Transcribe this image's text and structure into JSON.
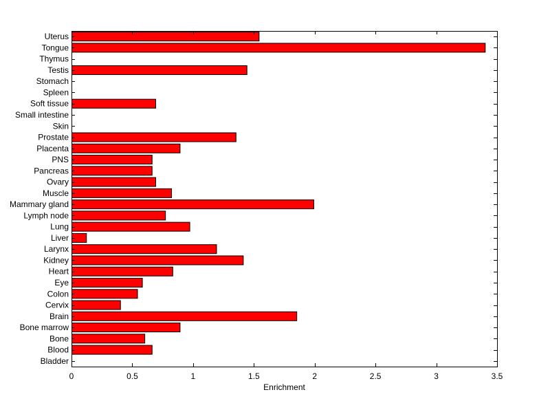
{
  "chart_data": {
    "type": "bar",
    "orientation": "horizontal",
    "title": "",
    "xlabel": "Enrichment",
    "ylabel": "",
    "xlim": [
      0,
      3.5
    ],
    "xticks": [
      0,
      0.5,
      1,
      1.5,
      2,
      2.5,
      3,
      3.5
    ],
    "xtick_labels": [
      "0",
      "0.5",
      "1",
      "1.5",
      "2",
      "2.5",
      "3",
      "3.5"
    ],
    "grid": false,
    "legend": "none",
    "bar_color": "#ff0000",
    "bar_edge_color": "#000000",
    "categories": [
      "Uterus",
      "Tongue",
      "Thymus",
      "Testis",
      "Stomach",
      "Spleen",
      "Soft tissue",
      "Small intestine",
      "Skin",
      "Prostate",
      "Placenta",
      "PNS",
      "Pancreas",
      "Ovary",
      "Muscle",
      "Mammary gland",
      "Lymph node",
      "Lung",
      "Liver",
      "Larynx",
      "Kidney",
      "Heart",
      "Eye",
      "Colon",
      "Cervix",
      "Brain",
      "Bone marrow",
      "Bone",
      "Blood",
      "Bladder"
    ],
    "values": [
      1.54,
      3.4,
      0,
      1.44,
      0,
      0,
      0.69,
      0,
      0,
      1.35,
      0.89,
      0.66,
      0.66,
      0.69,
      0.82,
      1.99,
      0.77,
      0.97,
      0.12,
      1.19,
      1.41,
      0.83,
      0.58,
      0.54,
      0.4,
      1.85,
      0.89,
      0.6,
      0.66,
      0
    ]
  }
}
